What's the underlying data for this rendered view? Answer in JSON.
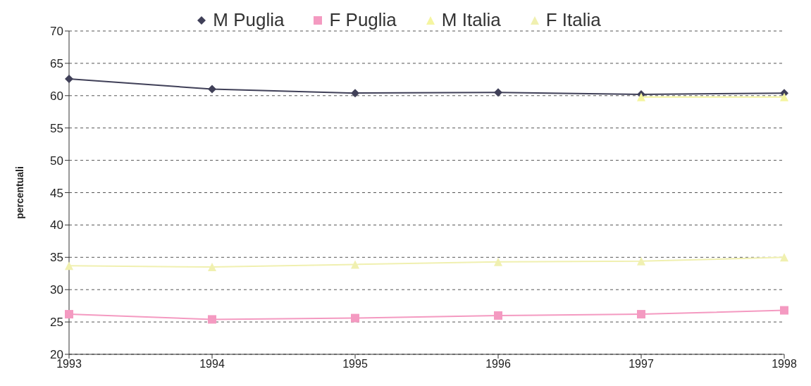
{
  "chart_data": {
    "type": "line",
    "ylabel": "percentuali",
    "categories": [
      "1993",
      "1994",
      "1995",
      "1996",
      "1997",
      "1998"
    ],
    "series": [
      {
        "name": "M Puglia",
        "color": "#404058",
        "marker": "diamond",
        "values": [
          62.6,
          61.0,
          60.4,
          60.5,
          60.2,
          60.4
        ]
      },
      {
        "name": "F Puglia",
        "color": "#f49ac1",
        "marker": "square",
        "values": [
          26.2,
          25.4,
          25.6,
          26.0,
          26.2,
          26.8
        ]
      },
      {
        "name": "M Italia",
        "color": "#f5f5a0",
        "marker": "triangle",
        "values": [
          null,
          null,
          null,
          null,
          59.8,
          59.8
        ]
      },
      {
        "name": "F Italia",
        "color": "#f0f0b0",
        "marker": "triangle",
        "values": [
          33.7,
          33.5,
          33.9,
          34.3,
          34.4,
          35.0
        ]
      }
    ],
    "ylim": [
      20,
      70
    ],
    "yticks": [
      20,
      25,
      30,
      35,
      40,
      45,
      50,
      55,
      60,
      65,
      70
    ],
    "grid": "y",
    "legend": "top"
  }
}
